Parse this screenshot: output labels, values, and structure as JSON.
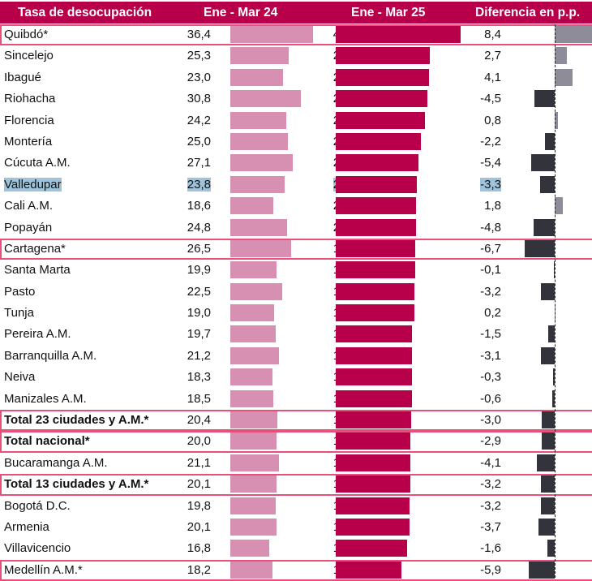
{
  "chart_data": {
    "type": "bar",
    "title": "Tasa de desocupación",
    "columns": [
      "Tasa de desocupación",
      "Ene - Mar 24",
      "Ene - Mar 25",
      "Diferencia en p.p."
    ],
    "categories": [
      "Quibdó*",
      "Sincelejo",
      "Ibagué",
      "Riohacha",
      "Florencia",
      "Montería",
      "Cúcuta A.M.",
      "Valledupar",
      "Cali A.M.",
      "Popayán",
      "Cartagena*",
      "Santa Marta",
      "Pasto",
      "Tunja",
      "Pereira A.M.",
      "Barranquilla A.M.",
      "Neiva",
      "Manizales A.M.",
      "Total 23 ciudades y A.M.*",
      "Total nacional*",
      "Bucaramanga A.M.",
      "Total 13 ciudades y A.M.*",
      "Bogotá D.C.",
      "Armenia",
      "Villavicencio",
      "Medellín A.M.*"
    ],
    "series": [
      {
        "name": "Ene - Mar 24",
        "color": "#d78fb2",
        "labels": [
          "36,4",
          "25,3",
          "23,0",
          "30,8",
          "24,2",
          "25,0",
          "27,1",
          "23,8",
          "18,6",
          "24,8",
          "26,5",
          "19,9",
          "22,5",
          "19,0",
          "19,7",
          "21,2",
          "18,3",
          "18,5",
          "20,4",
          "20,0",
          "21,1",
          "20,1",
          "19,8",
          "20,1",
          "16,8",
          "18,2"
        ],
        "values": [
          36.4,
          25.3,
          23.0,
          30.8,
          24.2,
          25.0,
          27.1,
          23.8,
          18.6,
          24.8,
          26.5,
          19.9,
          22.5,
          19.0,
          19.7,
          21.2,
          18.3,
          18.5,
          20.4,
          20.0,
          21.1,
          20.1,
          19.8,
          20.1,
          16.8,
          18.2
        ]
      },
      {
        "name": "Ene - Mar 25",
        "color": "#b8004a",
        "labels": [
          "44,8",
          "28,0",
          "27,2",
          "26,3",
          "25,0",
          "22,8",
          "21,7",
          "20,5",
          "20,4",
          "20,0",
          "19,9",
          "19,8",
          "19,3",
          "19,2",
          "18,1",
          "18,0",
          "18,0",
          "17,9",
          "17,4",
          "17,1",
          "17,1",
          "17,0",
          "16,6",
          "16,5",
          "15,2",
          "12,2"
        ],
        "values": [
          44.8,
          28.0,
          27.2,
          26.3,
          25.0,
          22.8,
          21.7,
          20.5,
          20.4,
          20.0,
          19.9,
          19.8,
          19.3,
          19.2,
          18.1,
          18.0,
          18.0,
          17.9,
          17.4,
          17.1,
          17.1,
          17.0,
          16.6,
          16.5,
          15.2,
          12.2
        ]
      },
      {
        "name": "Diferencia en p.p.",
        "color_positive": "#8e8c98",
        "color_negative": "#33333b",
        "labels": [
          "8,4",
          "2,7",
          "4,1",
          "-4,5",
          "0,8",
          "-2,2",
          "-5,4",
          "-3,3",
          "1,8",
          "-4,8",
          "-6,7",
          "-0,1",
          "-3,2",
          "0,2",
          "-1,5",
          "-3,1",
          "-0,3",
          "-0,6",
          "-3,0",
          "-2,9",
          "-4,1",
          "-3,2",
          "-3,2",
          "-3,7",
          "-1,6",
          "-5,9"
        ],
        "values": [
          8.4,
          2.7,
          4.1,
          -4.5,
          0.8,
          -2.2,
          -5.4,
          -3.3,
          1.8,
          -4.8,
          -6.7,
          -0.1,
          -3.2,
          0.2,
          -1.5,
          -3.1,
          -0.3,
          -0.6,
          -3.0,
          -2.9,
          -4.1,
          -3.2,
          -3.2,
          -3.7,
          -1.6,
          -5.9
        ]
      }
    ],
    "highlighted_rows": [
      "Quibdó*",
      "Cartagena*",
      "Total 23 ciudades y A.M.*",
      "Total nacional*",
      "Total 13 ciudades y A.M.*",
      "Medellín A.M.*"
    ],
    "bold_rows": [
      "Total 23 ciudades y A.M.*",
      "Total nacional*",
      "Total 13 ciudades y A.M.*"
    ],
    "selected_row": "Valledupar",
    "header_color": "#b8004a",
    "highlight_border_color": "#e8507a"
  }
}
